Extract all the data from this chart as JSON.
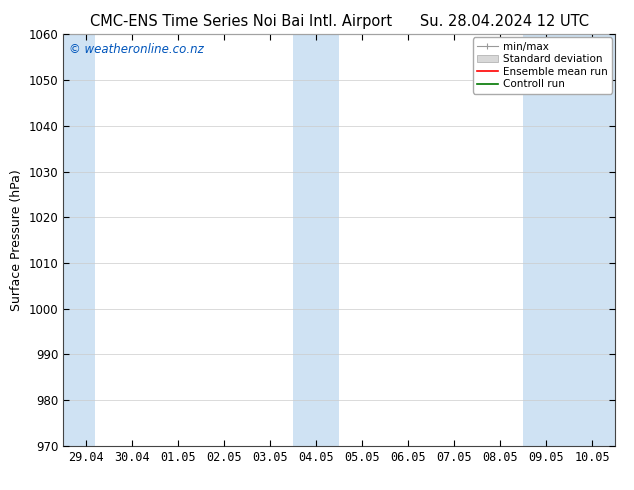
{
  "title_left": "CMC-ENS Time Series Noi Bai Intl. Airport",
  "title_right": "Su. 28.04.2024 12 UTC",
  "ylabel": "Surface Pressure (hPa)",
  "ylim": [
    970,
    1060
  ],
  "yticks": [
    970,
    980,
    990,
    1000,
    1010,
    1020,
    1030,
    1040,
    1050,
    1060
  ],
  "xtick_labels": [
    "29.04",
    "30.04",
    "01.05",
    "02.05",
    "03.05",
    "04.05",
    "05.05",
    "06.05",
    "07.05",
    "08.05",
    "09.05",
    "10.05"
  ],
  "xtick_positions": [
    0,
    1,
    2,
    3,
    4,
    5,
    6,
    7,
    8,
    9,
    10,
    11
  ],
  "xlim": [
    -0.5,
    11.5
  ],
  "shaded_bands": [
    {
      "x_start": -0.5,
      "x_end": 0.18
    },
    {
      "x_start": 4.5,
      "x_end": 5.0
    },
    {
      "x_start": 5.0,
      "x_end": 5.5
    },
    {
      "x_start": 9.5,
      "x_end": 10.0
    },
    {
      "x_start": 10.0,
      "x_end": 11.5
    }
  ],
  "band_color": "#cfe2f3",
  "background_color": "#ffffff",
  "watermark_text": "© weatheronline.co.nz",
  "watermark_color": "#0055bb",
  "legend_labels": [
    "min/max",
    "Standard deviation",
    "Ensemble mean run",
    "Controll run"
  ],
  "legend_colors_line": [
    "#aaaaaa",
    "#cccccc",
    "#ff0000",
    "#007700"
  ],
  "grid_color": "#cccccc",
  "spine_color": "#444444",
  "title_fontsize": 10.5,
  "tick_fontsize": 8.5,
  "ylabel_fontsize": 9,
  "watermark_fontsize": 8.5,
  "legend_fontsize": 7.5
}
